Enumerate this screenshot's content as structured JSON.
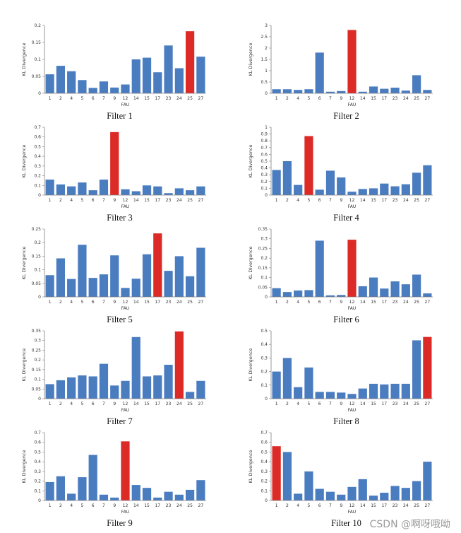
{
  "colors": {
    "bar": "#4a7cc0",
    "highlight": "#dc2a27",
    "axis": "#7f7f7f"
  },
  "watermark": "CSDN @啊呀哦呦",
  "chart_data": [
    {
      "type": "bar",
      "title": "Filter 1",
      "xlabel": "FAU",
      "ylabel": "KL Divergence",
      "categories": [
        "1",
        "2",
        "4",
        "5",
        "6",
        "7",
        "9",
        "12",
        "14",
        "15",
        "17",
        "23",
        "24",
        "25",
        "27"
      ],
      "values": [
        0.056,
        0.081,
        0.065,
        0.039,
        0.016,
        0.035,
        0.017,
        0.026,
        0.1,
        0.105,
        0.062,
        0.141,
        0.074,
        0.183,
        0.108
      ],
      "highlight_index": 13,
      "ylim": [
        0,
        0.2
      ],
      "yticks": [
        "0",
        "0.05",
        "0.1",
        "0.15",
        "0.2"
      ],
      "ytick_values": [
        0,
        0.05,
        0.1,
        0.15,
        0.2
      ]
    },
    {
      "type": "bar",
      "title": "Filter 2",
      "xlabel": "FAU",
      "ylabel": "KL Divergence",
      "categories": [
        "1",
        "2",
        "4",
        "5",
        "6",
        "7",
        "9",
        "12",
        "14",
        "15",
        "17",
        "23",
        "24",
        "25",
        "27"
      ],
      "values": [
        0.18,
        0.18,
        0.15,
        0.18,
        1.8,
        0.07,
        0.1,
        2.8,
        0.07,
        0.3,
        0.2,
        0.25,
        0.12,
        0.8,
        0.15
      ],
      "highlight_index": 7,
      "ylim": [
        0,
        3
      ],
      "yticks": [
        "0",
        "0.5",
        "1",
        "1.5",
        "2",
        "2.5",
        "3"
      ],
      "ytick_values": [
        0,
        0.5,
        1,
        1.5,
        2,
        2.5,
        3
      ]
    },
    {
      "type": "bar",
      "title": "Filter 3",
      "xlabel": "FAU",
      "ylabel": "KL Divergence",
      "categories": [
        "1",
        "2",
        "4",
        "5",
        "6",
        "7",
        "9",
        "12",
        "14",
        "15",
        "17",
        "23",
        "24",
        "25",
        "27"
      ],
      "values": [
        0.16,
        0.11,
        0.09,
        0.13,
        0.05,
        0.16,
        0.65,
        0.06,
        0.04,
        0.1,
        0.09,
        0.02,
        0.07,
        0.05,
        0.09
      ],
      "highlight_index": 6,
      "ylim": [
        0,
        0.7
      ],
      "yticks": [
        "0",
        "0.1",
        "0.2",
        "0.3",
        "0.4",
        "0.5",
        "0.6",
        "0.7"
      ],
      "ytick_values": [
        0,
        0.1,
        0.2,
        0.3,
        0.4,
        0.5,
        0.6,
        0.7
      ]
    },
    {
      "type": "bar",
      "title": "Filter 4",
      "xlabel": "FAU",
      "ylabel": "KL Divergence",
      "categories": [
        "1",
        "2",
        "4",
        "5",
        "6",
        "7",
        "9",
        "12",
        "14",
        "15",
        "17",
        "23",
        "24",
        "25",
        "27"
      ],
      "values": [
        0.37,
        0.5,
        0.15,
        0.87,
        0.08,
        0.36,
        0.26,
        0.05,
        0.09,
        0.1,
        0.17,
        0.13,
        0.16,
        0.33,
        0.44
      ],
      "highlight_index": 3,
      "ylim": [
        0,
        1
      ],
      "yticks": [
        "0",
        "0.1",
        "0.2",
        "0.3",
        "0.4",
        "0.5",
        "0.6",
        "0.7",
        "0.8",
        "0.9",
        "1"
      ],
      "ytick_values": [
        0,
        0.1,
        0.2,
        0.3,
        0.4,
        0.5,
        0.6,
        0.7,
        0.8,
        0.9,
        1
      ]
    },
    {
      "type": "bar",
      "title": "Filter 5",
      "xlabel": "FAU",
      "ylabel": "KL Divergence",
      "categories": [
        "1",
        "2",
        "4",
        "5",
        "6",
        "7",
        "9",
        "12",
        "14",
        "15",
        "17",
        "23",
        "24",
        "25",
        "27"
      ],
      "values": [
        0.08,
        0.142,
        0.066,
        0.192,
        0.07,
        0.083,
        0.153,
        0.033,
        0.067,
        0.157,
        0.234,
        0.096,
        0.15,
        0.076,
        0.181
      ],
      "highlight_index": 10,
      "ylim": [
        0,
        0.25
      ],
      "yticks": [
        "0",
        "0.05",
        "0.1",
        "0.15",
        "0.2",
        "0.25"
      ],
      "ytick_values": [
        0,
        0.05,
        0.1,
        0.15,
        0.2,
        0.25
      ]
    },
    {
      "type": "bar",
      "title": "Filter 6",
      "xlabel": "FAU",
      "ylabel": "KL Divergence",
      "categories": [
        "1",
        "2",
        "4",
        "5",
        "6",
        "7",
        "9",
        "12",
        "14",
        "15",
        "17",
        "23",
        "24",
        "25",
        "27"
      ],
      "values": [
        0.045,
        0.025,
        0.033,
        0.035,
        0.29,
        0.008,
        0.01,
        0.295,
        0.055,
        0.1,
        0.043,
        0.08,
        0.065,
        0.115,
        0.018
      ],
      "highlight_index": 7,
      "ylim": [
        0,
        0.35
      ],
      "yticks": [
        "0",
        "0.05",
        "0.1",
        "0.15",
        "0.2",
        "0.25",
        "0.3",
        "0.35"
      ],
      "ytick_values": [
        0,
        0.05,
        0.1,
        0.15,
        0.2,
        0.25,
        0.3,
        0.35
      ]
    },
    {
      "type": "bar",
      "title": "Filter 7",
      "xlabel": "FAU",
      "ylabel": "KL Divergence",
      "categories": [
        "1",
        "2",
        "4",
        "5",
        "6",
        "7",
        "9",
        "12",
        "14",
        "15",
        "17",
        "23",
        "24",
        "25",
        "27"
      ],
      "values": [
        0.075,
        0.095,
        0.11,
        0.12,
        0.115,
        0.18,
        0.068,
        0.092,
        0.318,
        0.115,
        0.12,
        0.175,
        0.347,
        0.035,
        0.092
      ],
      "highlight_index": 12,
      "ylim": [
        0,
        0.35
      ],
      "yticks": [
        "0",
        "0.05",
        "0.1",
        "0.15",
        "0.2",
        "0.25",
        "0.3",
        "0.35"
      ],
      "ytick_values": [
        0,
        0.05,
        0.1,
        0.15,
        0.2,
        0.25,
        0.3,
        0.35
      ]
    },
    {
      "type": "bar",
      "title": "Filter 8",
      "xlabel": "FAU",
      "ylabel": "KL Divergence",
      "categories": [
        "1",
        "2",
        "4",
        "5",
        "6",
        "7",
        "9",
        "12",
        "14",
        "15",
        "17",
        "23",
        "24",
        "25",
        "27"
      ],
      "values": [
        0.2,
        0.3,
        0.085,
        0.23,
        0.05,
        0.05,
        0.045,
        0.035,
        0.075,
        0.11,
        0.105,
        0.11,
        0.11,
        0.43,
        0.455
      ],
      "highlight_index": 14,
      "ylim": [
        0,
        0.5
      ],
      "yticks": [
        "0",
        "0.1",
        "0.2",
        "0.3",
        "0.4",
        "0.5"
      ],
      "ytick_values": [
        0,
        0.1,
        0.2,
        0.3,
        0.4,
        0.5
      ]
    },
    {
      "type": "bar",
      "title": "Filter 9",
      "xlabel": "FAU",
      "ylabel": "KL Divergence",
      "categories": [
        "1",
        "2",
        "4",
        "5",
        "6",
        "7",
        "9",
        "12",
        "14",
        "15",
        "17",
        "23",
        "24",
        "25",
        "27"
      ],
      "values": [
        0.19,
        0.25,
        0.07,
        0.24,
        0.47,
        0.06,
        0.03,
        0.61,
        0.16,
        0.13,
        0.03,
        0.09,
        0.06,
        0.11,
        0.21
      ],
      "highlight_index": 7,
      "ylim": [
        0,
        0.7
      ],
      "yticks": [
        "0",
        "0.1",
        "0.2",
        "0.3",
        "0.4",
        "0.5",
        "0.6",
        "0.7"
      ],
      "ytick_values": [
        0,
        0.1,
        0.2,
        0.3,
        0.4,
        0.5,
        0.6,
        0.7
      ]
    },
    {
      "type": "bar",
      "title": "Filter 10",
      "xlabel": "FAU",
      "ylabel": "KL Divergence",
      "categories": [
        "1",
        "2",
        "4",
        "5",
        "6",
        "7",
        "9",
        "12",
        "14",
        "15",
        "17",
        "23",
        "24",
        "25",
        "27"
      ],
      "values": [
        0.56,
        0.5,
        0.07,
        0.3,
        0.12,
        0.09,
        0.06,
        0.14,
        0.22,
        0.05,
        0.08,
        0.15,
        0.13,
        0.2,
        0.4
      ],
      "highlight_index": 0,
      "ylim": [
        0,
        0.7
      ],
      "yticks": [
        "0",
        "0.1",
        "0.2",
        "0.3",
        "0.4",
        "0.5",
        "0.6",
        "0.7"
      ],
      "ytick_values": [
        0,
        0.1,
        0.2,
        0.3,
        0.4,
        0.5,
        0.6,
        0.7
      ]
    }
  ]
}
